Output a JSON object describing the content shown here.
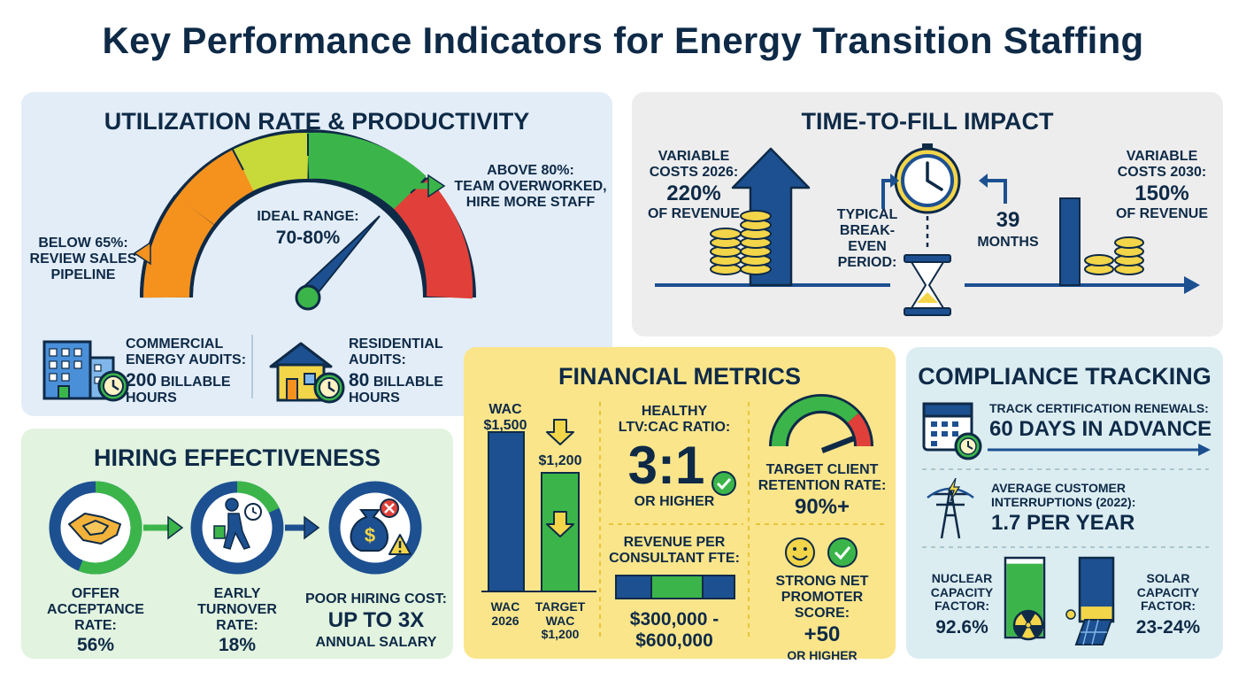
{
  "title": "Key Performance Indicators for Energy Transition Staffing",
  "colors": {
    "navy": "#0e2a47",
    "blue": "#1d5091",
    "green": "#3bb54a",
    "yellow": "#f3d54a",
    "orange": "#f5921e",
    "red": "#e04039",
    "panel_blue": "#e3edf7",
    "panel_gray": "#ededed",
    "panel_green": "#e2f3df",
    "panel_yellow": "#fbe58a",
    "panel_teal": "#dcedf2"
  },
  "utilization": {
    "title": "UTILIZATION RATE & PRODUCTIVITY",
    "below": [
      "BELOW 65%:",
      "REVIEW SALES",
      "PIPELINE"
    ],
    "ideal": [
      "IDEAL RANGE:",
      "70-80%"
    ],
    "above": [
      "ABOVE 80%:",
      "TEAM OVERWORKED,",
      "HIRE MORE STAFF"
    ],
    "commercial": [
      "COMMERCIAL",
      "ENERGY AUDITS:"
    ],
    "commercial_value": "200",
    "commercial_unit": [
      "BILLABLE",
      "HOURS"
    ],
    "residential": [
      "RESIDENTIAL",
      "AUDITS:"
    ],
    "residential_value": "80",
    "residential_unit": [
      "BILLABLE",
      "HOURS"
    ],
    "icons": [
      "office-building-icon",
      "house-icon",
      "clock-icon"
    ]
  },
  "time_to_fill": {
    "title": "TIME-TO-FILL IMPACT",
    "left_label": [
      "VARIABLE",
      "COSTS 2026:"
    ],
    "left_value": "220%",
    "left_unit": "OF REVENUE",
    "break_even": [
      "TYPICAL",
      "BREAK-EVEN",
      "PERIOD:"
    ],
    "months_value": "39",
    "months_unit": "MONTHS",
    "right_label": [
      "VARIABLE",
      "COSTS 2030:"
    ],
    "right_value": "150%",
    "right_unit": "OF REVENUE",
    "icons": [
      "up-arrow-icon",
      "coin-stack-icon",
      "clock-icon",
      "hourglass-icon"
    ]
  },
  "hiring": {
    "title": "HIRING EFFECTIVENESS",
    "offer": [
      "OFFER",
      "ACCEPTANCE",
      "RATE:"
    ],
    "offer_value": "56%",
    "offer_fraction": 0.56,
    "turnover": [
      "EARLY",
      "TURNOVER",
      "RATE:"
    ],
    "turnover_value": "18%",
    "poor_cost": "POOR HIRING COST:",
    "poor_value": "UP TO 3x",
    "poor_unit": "ANNUAL SALARY",
    "icons": [
      "handshake-icon",
      "walking-person-icon",
      "money-bag-icon",
      "warning-icon"
    ]
  },
  "financial": {
    "title": "FINANCIAL METRICS",
    "wac_top": "WAC",
    "wac_value": "$1,500",
    "target_top": "$1,200",
    "wac_label": [
      "WAC",
      "2026"
    ],
    "target_label": [
      "TARGET",
      "WAC",
      "$1,200"
    ],
    "ltv_label": [
      "HEALTHY",
      "LTV:CAC RATIO:"
    ],
    "ltv_value": "3:1",
    "ltv_unit": "OR HIGHER",
    "retention_label": [
      "TARGET CLIENT",
      "RETENTION RATE:"
    ],
    "retention_value": "90%+",
    "revenue_label": [
      "REVENUE PER",
      "CONSULTANT FTE:"
    ],
    "revenue_value": [
      "$300,000 -",
      "$600,000"
    ],
    "nps_label": [
      "STRONG NET",
      "PROMOTER SCORE:"
    ],
    "nps_value": "+50",
    "nps_unit": "OR HIGHER",
    "icons": [
      "down-arrow-icon",
      "check-icon",
      "gauge-icon",
      "smiley-icon"
    ]
  },
  "compliance": {
    "title": "COMPLIANCE TRACKING",
    "renewals_label": "TRACK CERTIFICATION RENEWALS:",
    "renewals_value": "60 DAYS IN ADVANCE",
    "interruptions_label": [
      "AVERAGE CUSTOMER",
      "INTERRUPTIONS (2022):"
    ],
    "interruptions_value": "1.7 PER YEAR",
    "nuclear_label": [
      "NUCLEAR",
      "CAPACITY",
      "FACTOR:"
    ],
    "nuclear_value": "92.6%",
    "nuclear_fraction": 0.926,
    "solar_label": [
      "SOLAR",
      "CAPACITY",
      "FACTOR:"
    ],
    "solar_value": "23-24%",
    "solar_fraction": 0.235,
    "icons": [
      "calendar-icon",
      "power-tower-icon",
      "radiation-icon",
      "solar-panel-icon"
    ]
  }
}
